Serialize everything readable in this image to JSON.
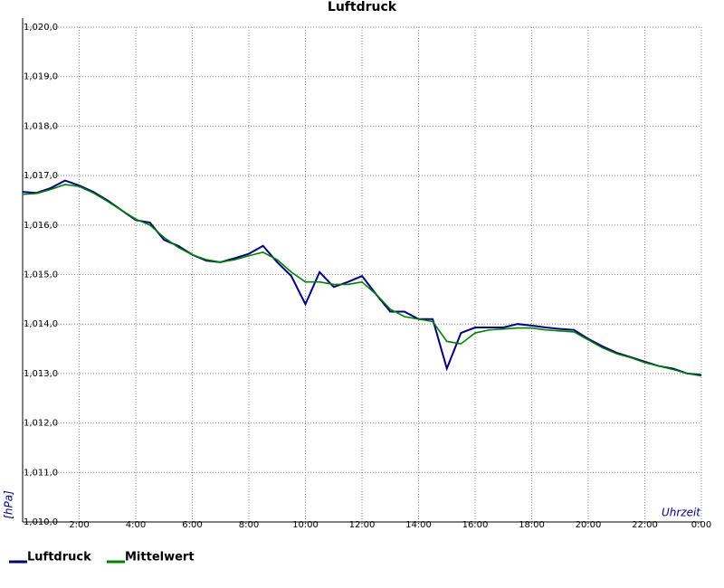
{
  "chart_data": {
    "type": "line",
    "title": "Luftdruck",
    "ylabel": "[hPa]",
    "xlabel": "Uhrzeit",
    "x": [
      0,
      0.5,
      1,
      1.5,
      2,
      2.5,
      3,
      3.5,
      4,
      4.5,
      5,
      5.5,
      6,
      6.5,
      7,
      7.5,
      8,
      8.5,
      9,
      9.5,
      10,
      10.5,
      11,
      11.5,
      12,
      12.5,
      13,
      13.5,
      14,
      14.5,
      15,
      15.5,
      16,
      16.5,
      17,
      17.5,
      18,
      18.5,
      19,
      19.5,
      20,
      20.5,
      21,
      21.5,
      22,
      22.5,
      23,
      23.5,
      24
    ],
    "series": [
      {
        "name": "Luftdruck",
        "color": "#000080",
        "values": [
          1016.67,
          1016.65,
          1016.75,
          1016.9,
          1016.8,
          1016.67,
          1016.5,
          1016.3,
          1016.1,
          1016.05,
          1015.7,
          1015.58,
          1015.4,
          1015.28,
          1015.25,
          1015.33,
          1015.42,
          1015.58,
          1015.25,
          1014.97,
          1014.4,
          1015.05,
          1014.75,
          1014.85,
          1014.97,
          1014.6,
          1014.25,
          1014.25,
          1014.1,
          1014.1,
          1013.1,
          1013.82,
          1013.93,
          1013.93,
          1013.93,
          1014.0,
          1013.97,
          1013.93,
          1013.9,
          1013.88,
          1013.7,
          1013.55,
          1013.42,
          1013.33,
          1013.24,
          1013.15,
          1013.1,
          1013.0,
          1012.97
        ]
      },
      {
        "name": "Mittelwert",
        "color": "#008000",
        "values": [
          1016.62,
          1016.64,
          1016.72,
          1016.82,
          1016.78,
          1016.65,
          1016.48,
          1016.3,
          1016.12,
          1016.0,
          1015.75,
          1015.55,
          1015.4,
          1015.3,
          1015.25,
          1015.3,
          1015.38,
          1015.45,
          1015.3,
          1015.05,
          1014.85,
          1014.85,
          1014.8,
          1014.8,
          1014.85,
          1014.6,
          1014.3,
          1014.15,
          1014.1,
          1014.05,
          1013.65,
          1013.6,
          1013.82,
          1013.88,
          1013.9,
          1013.92,
          1013.92,
          1013.88,
          1013.86,
          1013.84,
          1013.68,
          1013.52,
          1013.4,
          1013.32,
          1013.22,
          1013.15,
          1013.08,
          1013.0,
          1012.95
        ]
      }
    ],
    "xlim": [
      0,
      24
    ],
    "xticks": [
      {
        "value": 2,
        "label": "2:00"
      },
      {
        "value": 4,
        "label": "4:00"
      },
      {
        "value": 6,
        "label": "6:00"
      },
      {
        "value": 8,
        "label": "8:00"
      },
      {
        "value": 10,
        "label": "10:00"
      },
      {
        "value": 12,
        "label": "12:00"
      },
      {
        "value": 14,
        "label": "14:00"
      },
      {
        "value": 16,
        "label": "16:00"
      },
      {
        "value": 18,
        "label": "18:00"
      },
      {
        "value": 20,
        "label": "20:00"
      },
      {
        "value": 22,
        "label": "22:00"
      },
      {
        "value": 24,
        "label": "0:00"
      }
    ],
    "ylim": [
      1010,
      1020
    ],
    "yticks": [
      {
        "value": 1010,
        "label": "1,010,0"
      },
      {
        "value": 1011,
        "label": "1,011,0"
      },
      {
        "value": 1012,
        "label": "1,012,0"
      },
      {
        "value": 1013,
        "label": "1,013,0"
      },
      {
        "value": 1014,
        "label": "1,014,0"
      },
      {
        "value": 1015,
        "label": "1,015,0"
      },
      {
        "value": 1016,
        "label": "1,016,0"
      },
      {
        "value": 1017,
        "label": "1,017,0"
      },
      {
        "value": 1018,
        "label": "1,018,0"
      },
      {
        "value": 1019,
        "label": "1,019,0"
      },
      {
        "value": 1020,
        "label": "1,020,0"
      }
    ],
    "grid": true
  }
}
